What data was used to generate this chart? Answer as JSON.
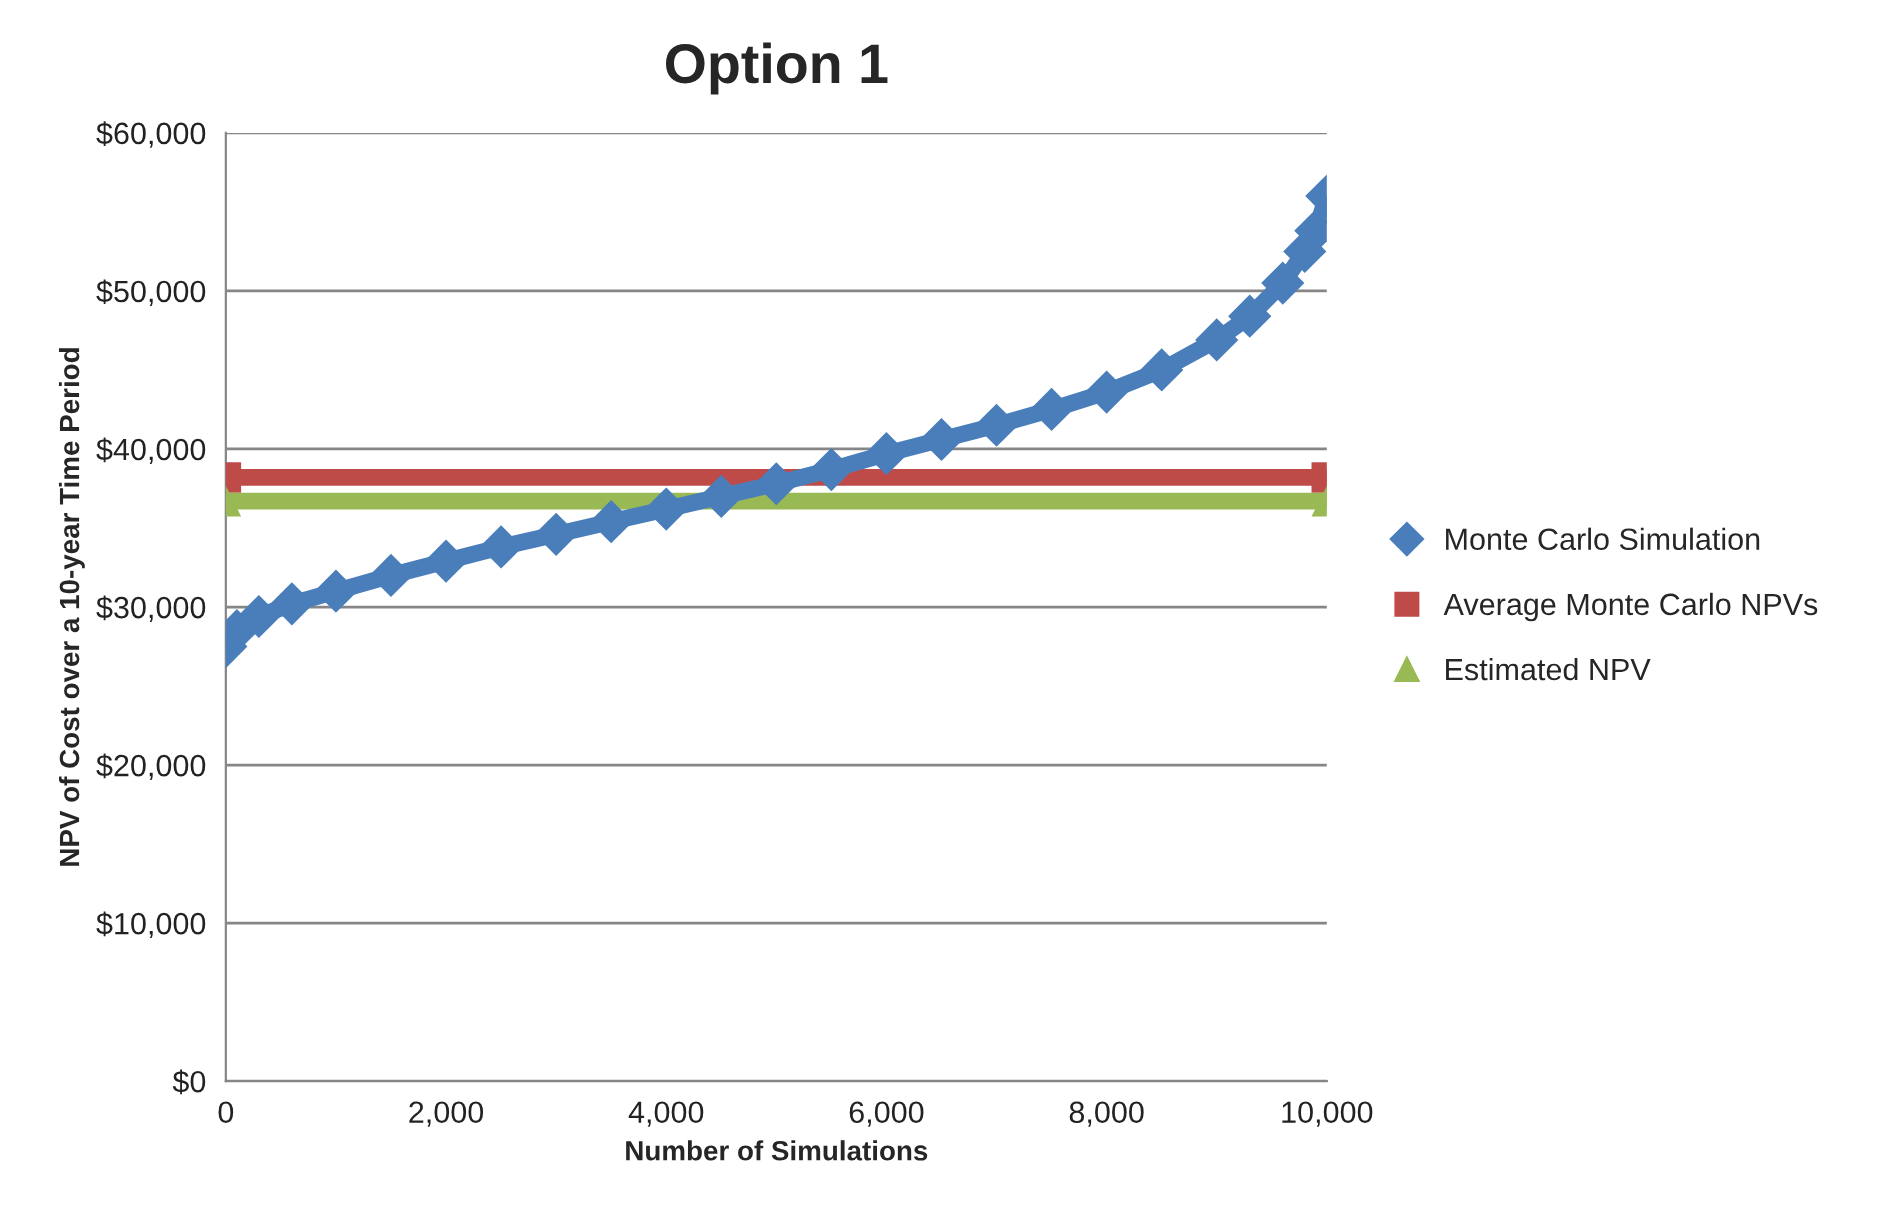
{
  "chart_data": {
    "type": "line",
    "title": "Option 1",
    "xlabel": "Number of Simulations",
    "ylabel": "NPV of Cost over a 10-year Time Period",
    "xlim": [
      0,
      10000
    ],
    "xticks": [
      {
        "value": 0,
        "label": "0"
      },
      {
        "value": 2000,
        "label": "2,000"
      },
      {
        "value": 4000,
        "label": "4,000"
      },
      {
        "value": 6000,
        "label": "6,000"
      },
      {
        "value": 8000,
        "label": "8,000"
      },
      {
        "value": 10000,
        "label": "10,000"
      }
    ],
    "ylim": [
      0,
      60000
    ],
    "yticks": [
      {
        "value": 0,
        "label": "$0"
      },
      {
        "value": 10000,
        "label": "$10,000"
      },
      {
        "value": 20000,
        "label": "$20,000"
      },
      {
        "value": 30000,
        "label": "$30,000"
      },
      {
        "value": 40000,
        "label": "$40,000"
      },
      {
        "value": 50000,
        "label": "$50,000"
      },
      {
        "value": 60000,
        "label": "$60,000"
      }
    ],
    "grid": "y",
    "legend": "right",
    "series": [
      {
        "name": "Monte Carlo Simulation",
        "color": "#4a7ebb",
        "marker": "diamond",
        "x": [
          0,
          100,
          300,
          600,
          1000,
          1500,
          2000,
          2500,
          3000,
          3500,
          4000,
          4500,
          5000,
          5500,
          6000,
          6500,
          7000,
          7500,
          8000,
          8500,
          9000,
          9300,
          9600,
          9800,
          9900,
          10000
        ],
        "values": [
          27500,
          28500,
          29400,
          30200,
          31000,
          32000,
          32900,
          33800,
          34600,
          35400,
          36200,
          37000,
          37800,
          38700,
          39700,
          40600,
          41500,
          42500,
          43600,
          45000,
          46900,
          48400,
          50500,
          52500,
          53800,
          56000
        ]
      },
      {
        "name": "Average Monte Carlo NPVs",
        "color": "#be4b48",
        "marker": "square",
        "x": [
          0,
          10000
        ],
        "values": [
          38200,
          38200
        ]
      },
      {
        "name": "Estimated NPV",
        "color": "#98b954",
        "marker": "triangle",
        "x": [
          0,
          10000
        ],
        "values": [
          36700,
          36700
        ]
      }
    ]
  }
}
